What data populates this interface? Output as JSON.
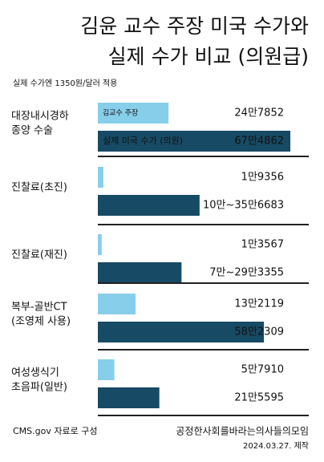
{
  "chart_data": {
    "type": "bar",
    "title": [
      "김윤 교수 주장 미국 수가와",
      "실제 수가 비교 (의원급)"
    ],
    "subtitle": "실제 수가엔 1350원/달러 적용",
    "categories": [
      [
        "대장내시경하",
        "종양 수술"
      ],
      [
        "진찰료(초진)"
      ],
      [
        "진찰료(재진)"
      ],
      [
        "복부-골반CT",
        "(조영제 사용)"
      ],
      [
        "여성생식기",
        "초음파(일반)"
      ]
    ],
    "series": [
      {
        "name": "김교수 주장",
        "color": "#87ceeb",
        "values": [
          247852,
          19356,
          13567,
          132119,
          57910
        ],
        "value_labels": [
          "24만7852",
          "1만9356",
          "1만3567",
          "13만2119",
          "5만7910"
        ]
      },
      {
        "name": "실제 미국 수가 (의원)",
        "color": "#174a64",
        "values": [
          674862,
          356683,
          293355,
          582309,
          215595
        ],
        "low": [
          null,
          100000,
          70000,
          null,
          null
        ],
        "value_labels": [
          "67만4862",
          "10만~35만6683",
          "7만~29만3355",
          "58만2309",
          "21만5595"
        ]
      }
    ],
    "source": "CMS.gov 자료로 구성",
    "credit": "공정한사회를바라는의사들의모임",
    "date": "2024.03.27. 제작"
  }
}
